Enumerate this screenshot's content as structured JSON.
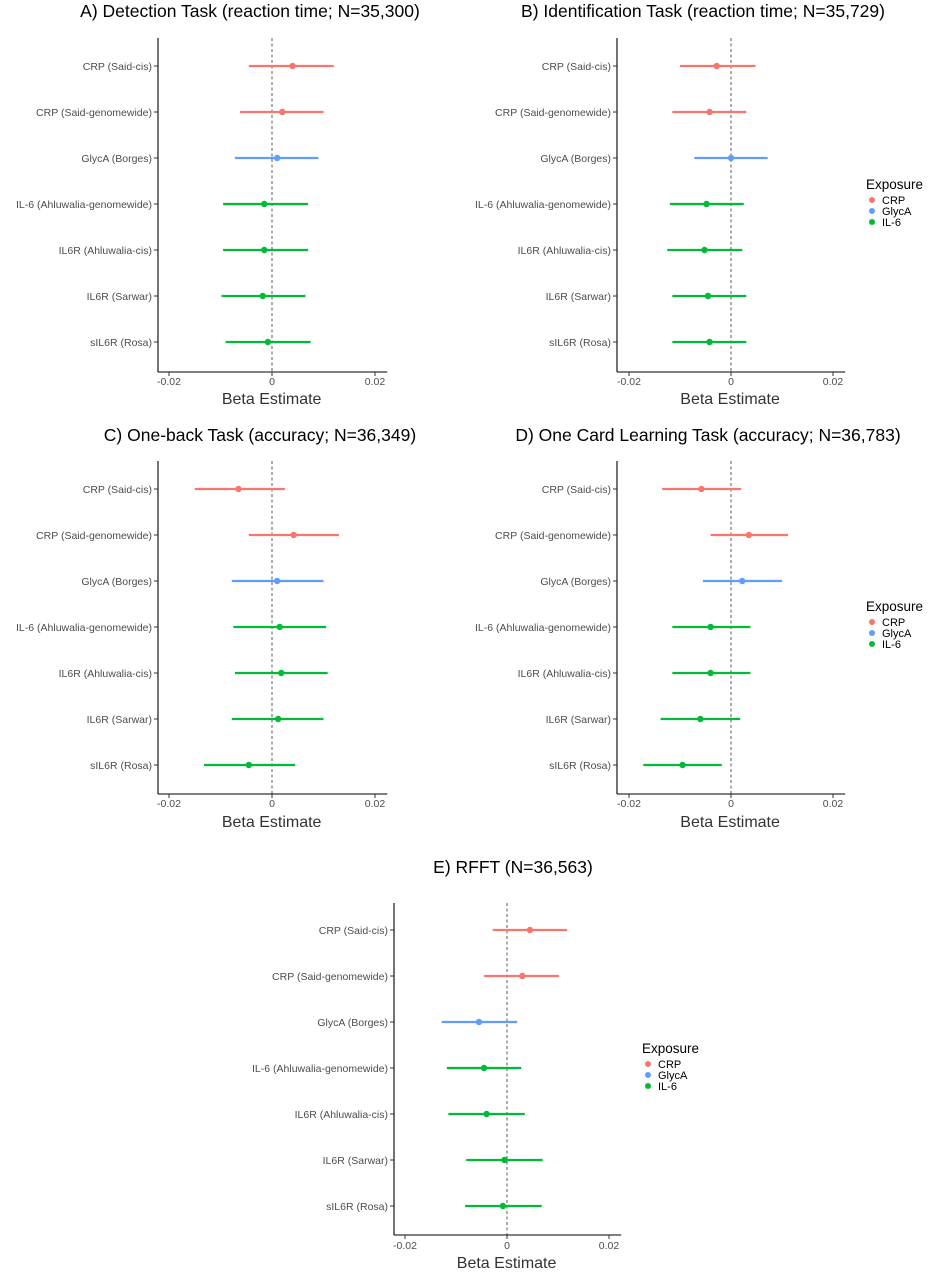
{
  "colors": {
    "CRP": "#F8766D",
    "GlycA": "#619CFF",
    "IL-6": "#00BA38"
  },
  "legend": {
    "title": "Exposure",
    "items": [
      {
        "label": "CRP",
        "color": "#F8766D"
      },
      {
        "label": "GlycA",
        "color": "#619CFF"
      },
      {
        "label": "IL-6",
        "color": "#00BA38"
      }
    ]
  },
  "chart_data": [
    {
      "type": "scatter",
      "title": "A) Detection Task (reaction time; N=35,300)",
      "xlabel": "Beta Estimate",
      "xlim": [
        -0.022,
        0.022
      ],
      "xticks": [
        -0.02,
        0,
        0.02
      ],
      "xtick_labels": [
        "-0.02",
        "0",
        "0.02"
      ],
      "reference_line": 0,
      "categories": [
        "CRP (Said-cis)",
        "CRP (Said-genomewide)",
        "GlycA (Borges)",
        "IL-6 (Ahluwalia-genomewide)",
        "IL6R (Ahluwalia-cis)",
        "IL6R (Sarwar)",
        "sIL6R (Rosa)"
      ],
      "exposure": [
        "CRP",
        "CRP",
        "GlycA",
        "IL-6",
        "IL-6",
        "IL-6",
        "IL-6"
      ],
      "estimate": [
        0.004,
        0.002,
        0.001,
        -0.0015,
        -0.0015,
        -0.0018,
        -0.0008
      ],
      "ci_low": [
        -0.0045,
        -0.0062,
        -0.0072,
        -0.0095,
        -0.0095,
        -0.0098,
        -0.009
      ],
      "ci_high": [
        0.012,
        0.01,
        0.009,
        0.007,
        0.007,
        0.0065,
        0.0075
      ]
    },
    {
      "type": "scatter",
      "title": "B) Identification Task (reaction time; N=35,729)",
      "xlabel": "Beta Estimate",
      "xlim": [
        -0.022,
        0.022
      ],
      "xticks": [
        -0.02,
        0,
        0.02
      ],
      "xtick_labels": [
        "-0.02",
        "0",
        "0.02"
      ],
      "reference_line": 0,
      "categories": [
        "CRP (Said-cis)",
        "CRP (Said-genomewide)",
        "GlycA (Borges)",
        "IL-6 (Ahluwalia-genomewide)",
        "IL6R (Ahluwalia-cis)",
        "IL6R (Sarwar)",
        "sIL6R (Rosa)"
      ],
      "exposure": [
        "CRP",
        "CRP",
        "GlycA",
        "IL-6",
        "IL-6",
        "IL-6",
        "IL-6"
      ],
      "estimate": [
        -0.0028,
        -0.0042,
        0.0,
        -0.0048,
        -0.0052,
        -0.0045,
        -0.0042
      ],
      "ci_low": [
        -0.01,
        -0.0115,
        -0.0072,
        -0.012,
        -0.0125,
        -0.0115,
        -0.0115
      ],
      "ci_high": [
        0.0048,
        0.003,
        0.0072,
        0.0025,
        0.0022,
        0.003,
        0.003
      ]
    },
    {
      "type": "scatter",
      "title": "C) One-back Task (accuracy; N=36,349)",
      "xlabel": "Beta Estimate",
      "xlim": [
        -0.022,
        0.022
      ],
      "xticks": [
        -0.02,
        0,
        0.02
      ],
      "xtick_labels": [
        "-0.02",
        "0",
        "0.02"
      ],
      "reference_line": 0,
      "categories": [
        "CRP (Said-cis)",
        "CRP (Said-genomewide)",
        "GlycA (Borges)",
        "IL-6 (Ahluwalia-genomewide)",
        "IL6R (Ahluwalia-cis)",
        "IL6R (Sarwar)",
        "sIL6R (Rosa)"
      ],
      "exposure": [
        "CRP",
        "CRP",
        "GlycA",
        "IL-6",
        "IL-6",
        "IL-6",
        "IL-6"
      ],
      "estimate": [
        -0.0065,
        0.0042,
        0.001,
        0.0015,
        0.0018,
        0.0012,
        -0.0045
      ],
      "ci_low": [
        -0.015,
        -0.0045,
        -0.0078,
        -0.0075,
        -0.0072,
        -0.0078,
        -0.0132
      ],
      "ci_high": [
        0.0025,
        0.013,
        0.01,
        0.0105,
        0.0108,
        0.01,
        0.0045
      ]
    },
    {
      "type": "scatter",
      "title": "D) One Card Learning Task (accuracy; N=36,783)",
      "xlabel": "Beta Estimate",
      "xlim": [
        -0.022,
        0.022
      ],
      "xticks": [
        -0.02,
        0,
        0.02
      ],
      "xtick_labels": [
        "-0.02",
        "0",
        "0.02"
      ],
      "reference_line": 0,
      "categories": [
        "CRP (Said-cis)",
        "CRP (Said-genomewide)",
        "GlycA (Borges)",
        "IL-6 (Ahluwalia-genomewide)",
        "IL6R (Ahluwalia-cis)",
        "IL6R (Sarwar)",
        "sIL6R (Rosa)"
      ],
      "exposure": [
        "CRP",
        "CRP",
        "GlycA",
        "IL-6",
        "IL-6",
        "IL-6",
        "IL-6"
      ],
      "estimate": [
        -0.0058,
        0.0035,
        0.0022,
        -0.004,
        -0.004,
        -0.006,
        -0.0095
      ],
      "ci_low": [
        -0.0135,
        -0.004,
        -0.0055,
        -0.0115,
        -0.0115,
        -0.0138,
        -0.0172
      ],
      "ci_high": [
        0.002,
        0.0112,
        0.01,
        0.0038,
        0.0038,
        0.0018,
        -0.0018
      ]
    },
    {
      "type": "scatter",
      "title": "E) RFFT (N=36,563)",
      "xlabel": "Beta Estimate",
      "xlim": [
        -0.022,
        0.022
      ],
      "xticks": [
        -0.02,
        0,
        0.02
      ],
      "xtick_labels": [
        "-0.02",
        "0",
        "0.02"
      ],
      "reference_line": 0,
      "categories": [
        "CRP (Said-cis)",
        "CRP (Said-genomewide)",
        "GlycA (Borges)",
        "IL-6 (Ahluwalia-genomewide)",
        "IL6R (Ahluwalia-cis)",
        "IL6R (Sarwar)",
        "sIL6R (Rosa)"
      ],
      "exposure": [
        "CRP",
        "CRP",
        "GlycA",
        "IL-6",
        "IL-6",
        "IL-6",
        "IL-6"
      ],
      "estimate": [
        0.0045,
        0.003,
        -0.0055,
        -0.0045,
        -0.004,
        -0.0005,
        -0.0008
      ],
      "ci_low": [
        -0.0028,
        -0.0045,
        -0.0128,
        -0.0118,
        -0.0115,
        -0.008,
        -0.0082
      ],
      "ci_high": [
        0.0118,
        0.0102,
        0.002,
        0.0028,
        0.0035,
        0.007,
        0.0068
      ]
    }
  ]
}
